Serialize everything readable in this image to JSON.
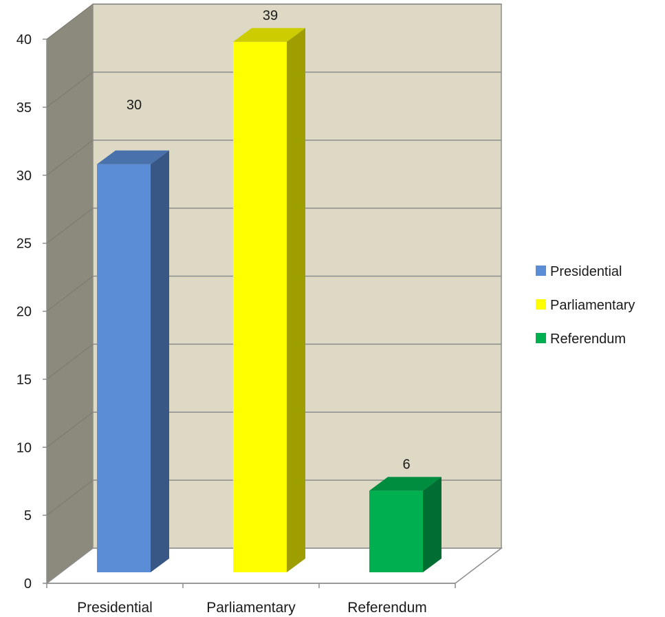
{
  "chart_data": {
    "type": "bar",
    "style": "3d-column",
    "categories": [
      "Presidential",
      "Parliamentary",
      "Referendum"
    ],
    "values": [
      30,
      39,
      6
    ],
    "data_labels": [
      "30",
      "39",
      "6"
    ],
    "colors": [
      "#5b8dd6",
      "#ffff00",
      "#00b050"
    ],
    "ylim": [
      0,
      40
    ],
    "yticks": [
      "0",
      "5",
      "10",
      "15",
      "20",
      "25",
      "30",
      "35",
      "40"
    ],
    "grid": true,
    "legend": {
      "position": "right",
      "entries": [
        "Presidential",
        "Parliamentary",
        "Referendum"
      ]
    },
    "wall_color": "#ddd9c4",
    "side_wall_color": "#8c8a7d",
    "title": "",
    "xlabel": "",
    "ylabel": ""
  }
}
